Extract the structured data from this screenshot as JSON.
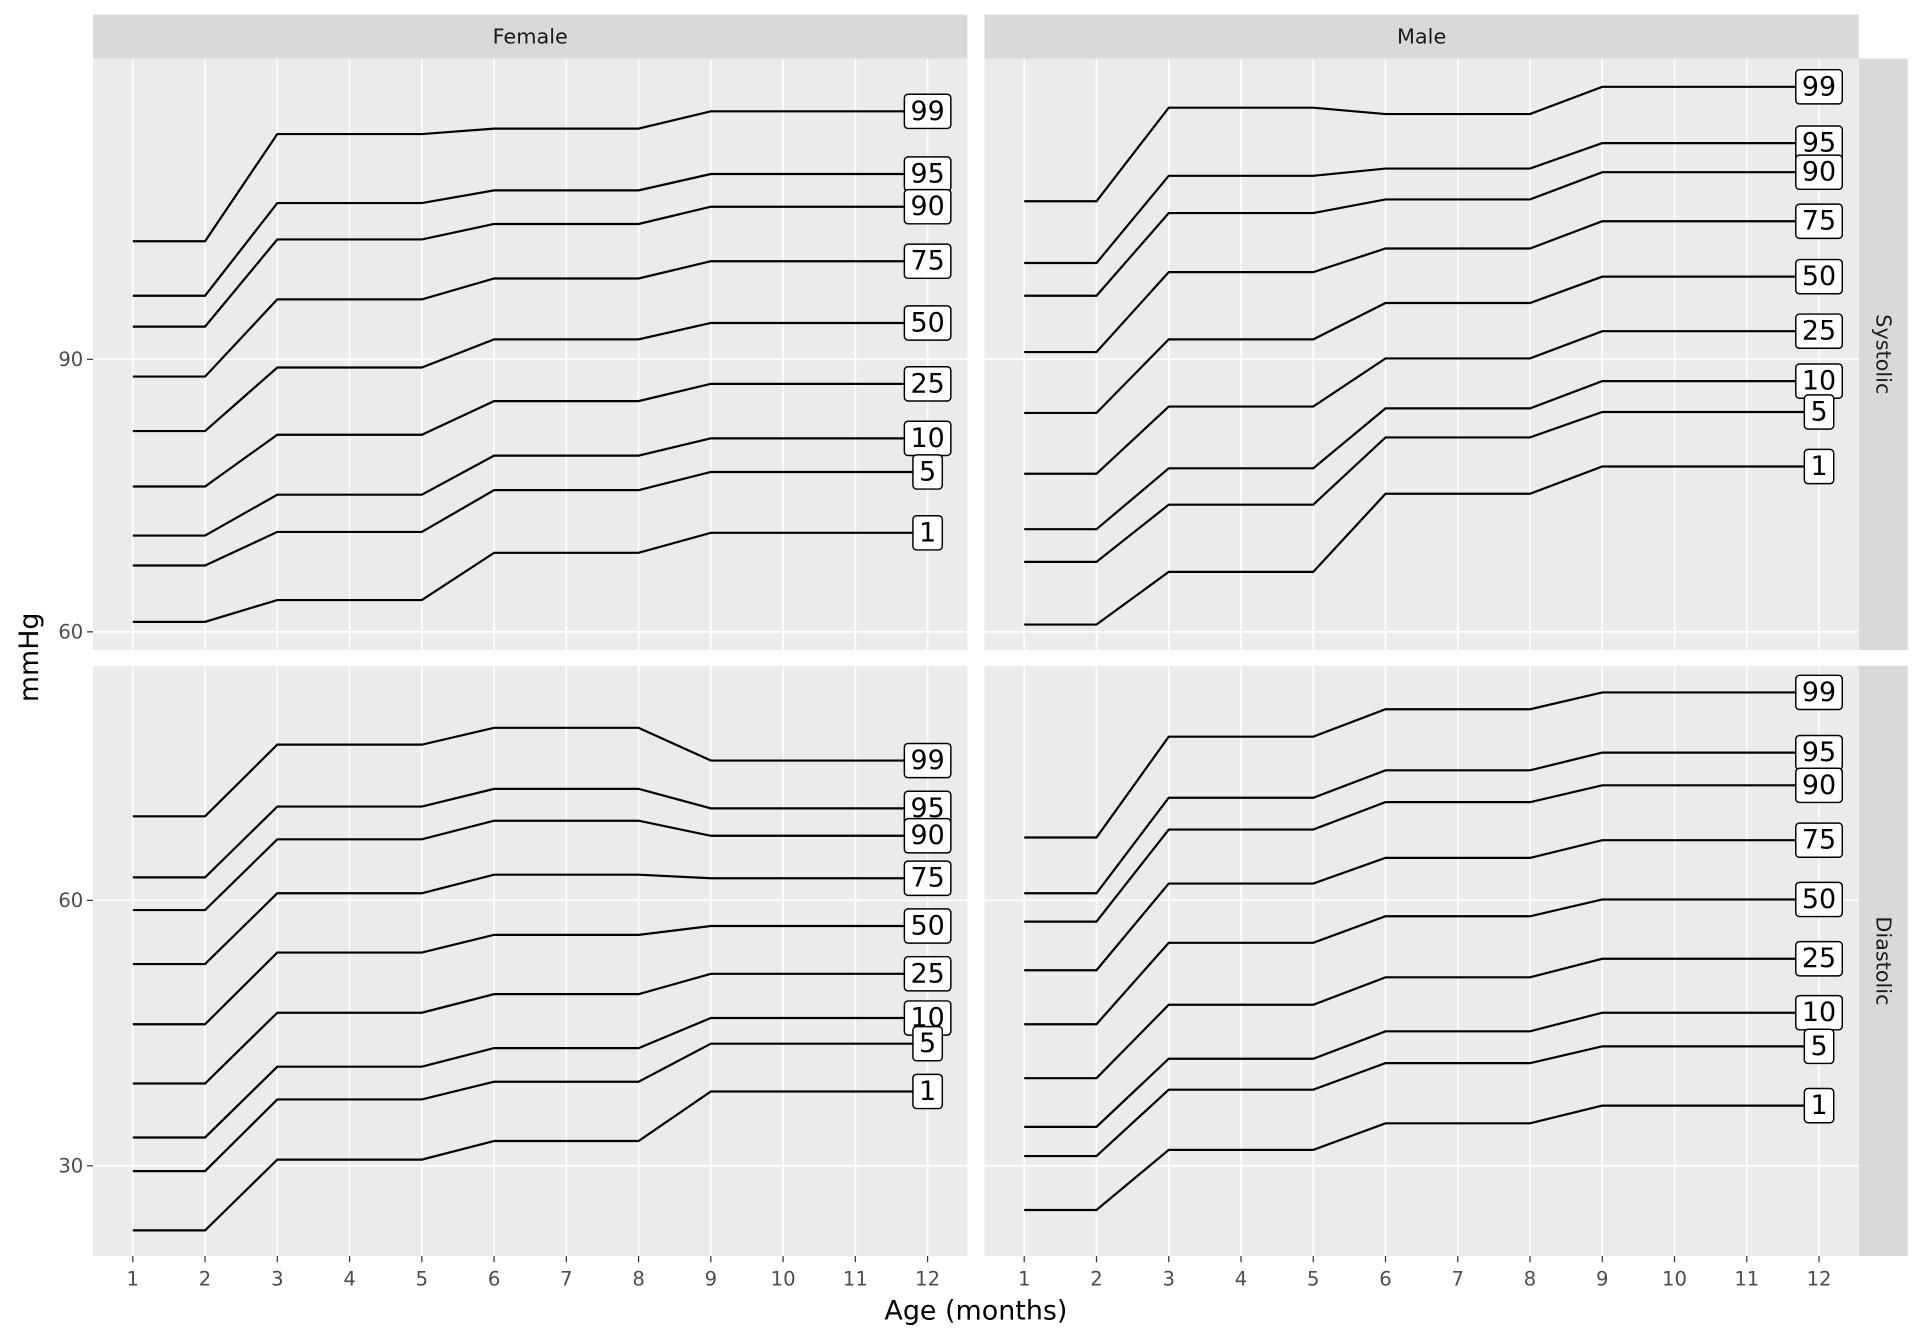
{
  "chart_data": {
    "type": "line",
    "x_label": "Age (months)",
    "y_label": "mmHg",
    "color": "#000000",
    "grid": true,
    "columns": [
      "Female",
      "Male"
    ],
    "x": [
      1,
      2,
      3,
      5,
      6,
      8,
      9,
      12
    ],
    "xlim": [
      0.45,
      12.55
    ],
    "xticks": [
      1,
      2,
      3,
      4,
      5,
      6,
      7,
      8,
      9,
      10,
      11,
      12
    ],
    "rows": [
      {
        "label": "Systolic",
        "ylim": [
          58,
          123.1
        ],
        "yticks": [
          60,
          90
        ],
        "panels": [
          {
            "series": [
              {
                "name": "99",
                "values": [
                  103.0,
                  103.0,
                  114.8,
                  114.8,
                  115.4,
                  115.4,
                  117.3,
                  117.3
                ]
              },
              {
                "name": "95",
                "values": [
                  97.0,
                  97.0,
                  107.2,
                  107.2,
                  108.6,
                  108.6,
                  110.4,
                  110.4
                ]
              },
              {
                "name": "90",
                "values": [
                  93.6,
                  93.6,
                  103.2,
                  103.2,
                  104.9,
                  104.9,
                  106.8,
                  106.8
                ]
              },
              {
                "name": "75",
                "values": [
                  88.1,
                  88.1,
                  96.6,
                  96.6,
                  98.9,
                  98.9,
                  100.8,
                  100.8
                ]
              },
              {
                "name": "50",
                "values": [
                  82.1,
                  82.1,
                  89.1,
                  89.1,
                  92.2,
                  92.2,
                  94.0,
                  94.0
                ]
              },
              {
                "name": "25",
                "values": [
                  76.0,
                  76.0,
                  81.7,
                  81.7,
                  85.4,
                  85.4,
                  87.3,
                  87.3
                ]
              },
              {
                "name": "10",
                "values": [
                  70.6,
                  70.6,
                  75.1,
                  75.1,
                  79.4,
                  79.4,
                  81.3,
                  81.3
                ]
              },
              {
                "name": "5",
                "values": [
                  67.3,
                  67.3,
                  71.0,
                  71.0,
                  75.6,
                  75.6,
                  77.6,
                  77.6
                ]
              },
              {
                "name": "1",
                "values": [
                  61.1,
                  61.1,
                  63.5,
                  63.5,
                  68.7,
                  68.7,
                  70.9,
                  70.9
                ]
              }
            ]
          },
          {
            "series": [
              {
                "name": "99",
                "values": [
                  107.4,
                  107.4,
                  117.7,
                  117.7,
                  117.0,
                  117.0,
                  120.0,
                  120.0
                ]
              },
              {
                "name": "95",
                "values": [
                  100.6,
                  100.6,
                  110.2,
                  110.2,
                  111.0,
                  111.0,
                  113.8,
                  113.8
                ]
              },
              {
                "name": "90",
                "values": [
                  97.0,
                  97.0,
                  106.1,
                  106.1,
                  107.6,
                  107.6,
                  110.6,
                  110.6
                ]
              },
              {
                "name": "75",
                "values": [
                  90.8,
                  90.8,
                  99.6,
                  99.6,
                  102.2,
                  102.2,
                  105.2,
                  105.2
                ]
              },
              {
                "name": "50",
                "values": [
                  84.1,
                  84.1,
                  92.2,
                  92.2,
                  96.2,
                  96.2,
                  99.1,
                  99.1
                ]
              },
              {
                "name": "25",
                "values": [
                  77.4,
                  77.4,
                  84.8,
                  84.8,
                  90.1,
                  90.1,
                  93.1,
                  93.1
                ]
              },
              {
                "name": "10",
                "values": [
                  71.3,
                  71.3,
                  78.0,
                  78.0,
                  84.6,
                  84.6,
                  87.6,
                  87.6
                ]
              },
              {
                "name": "5",
                "values": [
                  67.7,
                  67.7,
                  74.0,
                  74.0,
                  81.4,
                  81.4,
                  84.2,
                  84.2
                ]
              },
              {
                "name": "1",
                "values": [
                  60.8,
                  60.8,
                  66.6,
                  66.6,
                  75.2,
                  75.2,
                  78.2,
                  78.2
                ]
              }
            ]
          }
        ]
      },
      {
        "label": "Diastolic",
        "ylim": [
          19.8,
          86.5
        ],
        "yticks": [
          30,
          60
        ],
        "panels": [
          {
            "series": [
              {
                "name": "99",
                "values": [
                  69.5,
                  69.5,
                  77.6,
                  77.6,
                  79.5,
                  79.5,
                  75.8,
                  75.8
                ]
              },
              {
                "name": "95",
                "values": [
                  62.6,
                  62.6,
                  70.6,
                  70.6,
                  72.6,
                  72.6,
                  70.4,
                  70.4
                ]
              },
              {
                "name": "90",
                "values": [
                  58.9,
                  58.9,
                  66.9,
                  66.9,
                  69.0,
                  69.0,
                  67.3,
                  67.3
                ]
              },
              {
                "name": "75",
                "values": [
                  52.8,
                  52.8,
                  60.8,
                  60.8,
                  62.9,
                  62.9,
                  62.5,
                  62.5
                ]
              },
              {
                "name": "50",
                "values": [
                  46.0,
                  46.0,
                  54.1,
                  54.1,
                  56.1,
                  56.1,
                  57.1,
                  57.1
                ]
              },
              {
                "name": "25",
                "values": [
                  39.3,
                  39.3,
                  47.3,
                  47.3,
                  49.4,
                  49.4,
                  51.7,
                  51.7
                ]
              },
              {
                "name": "10",
                "values": [
                  33.2,
                  33.2,
                  41.2,
                  41.2,
                  43.3,
                  43.3,
                  46.7,
                  46.7
                ]
              },
              {
                "name": "5",
                "values": [
                  29.4,
                  29.4,
                  37.5,
                  37.5,
                  39.5,
                  39.5,
                  43.8,
                  43.8
                ]
              },
              {
                "name": "1",
                "values": [
                  22.7,
                  22.7,
                  30.7,
                  30.7,
                  32.8,
                  32.8,
                  38.4,
                  38.4
                ]
              }
            ]
          },
          {
            "series": [
              {
                "name": "99",
                "values": [
                  67.1,
                  67.1,
                  78.5,
                  78.5,
                  81.6,
                  81.6,
                  83.5,
                  83.5
                ]
              },
              {
                "name": "95",
                "values": [
                  60.8,
                  60.8,
                  71.6,
                  71.6,
                  74.7,
                  74.7,
                  76.7,
                  76.7
                ]
              },
              {
                "name": "90",
                "values": [
                  57.6,
                  57.6,
                  68.0,
                  68.0,
                  71.1,
                  71.1,
                  73.0,
                  73.0
                ]
              },
              {
                "name": "75",
                "values": [
                  52.1,
                  52.1,
                  61.9,
                  61.9,
                  64.8,
                  64.8,
                  66.8,
                  66.8
                ]
              },
              {
                "name": "50",
                "values": [
                  46.0,
                  46.0,
                  55.2,
                  55.2,
                  58.2,
                  58.2,
                  60.1,
                  60.1
                ]
              },
              {
                "name": "25",
                "values": [
                  39.9,
                  39.9,
                  48.2,
                  48.2,
                  51.3,
                  51.3,
                  53.4,
                  53.4
                ]
              },
              {
                "name": "10",
                "values": [
                  34.4,
                  34.4,
                  42.1,
                  42.1,
                  45.2,
                  45.2,
                  47.3,
                  47.3
                ]
              },
              {
                "name": "5",
                "values": [
                  31.1,
                  31.1,
                  38.6,
                  38.6,
                  41.6,
                  41.6,
                  43.5,
                  43.5
                ]
              },
              {
                "name": "1",
                "values": [
                  25.0,
                  25.0,
                  31.8,
                  31.8,
                  34.8,
                  34.8,
                  36.8,
                  36.8
                ]
              }
            ]
          }
        ]
      }
    ]
  }
}
